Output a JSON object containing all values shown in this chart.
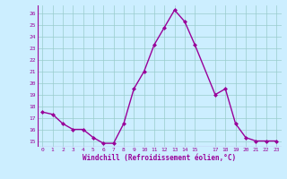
{
  "x": [
    0,
    1,
    2,
    3,
    4,
    5,
    6,
    7,
    8,
    9,
    10,
    11,
    12,
    13,
    14,
    15,
    17,
    18,
    19,
    20,
    21,
    22,
    23
  ],
  "y": [
    17.5,
    17.3,
    16.5,
    16.0,
    16.0,
    15.3,
    14.8,
    14.8,
    16.5,
    19.5,
    21.0,
    23.3,
    24.8,
    26.3,
    25.3,
    23.3,
    19.0,
    19.5,
    16.5,
    15.3,
    15.0,
    15.0,
    15.0
  ],
  "xlim": [
    -0.5,
    23.5
  ],
  "ylim": [
    14.5,
    26.7
  ],
  "yticks": [
    15,
    16,
    17,
    18,
    19,
    20,
    21,
    22,
    23,
    24,
    25,
    26
  ],
  "xticks": [
    0,
    1,
    2,
    3,
    4,
    5,
    6,
    7,
    8,
    9,
    10,
    11,
    12,
    13,
    14,
    15,
    17,
    18,
    19,
    20,
    21,
    22,
    23
  ],
  "xlabel": "Windchill (Refroidissement éolien,°C)",
  "line_color": "#990099",
  "marker": "D",
  "marker_size": 2,
  "bg_color": "#cceeff",
  "grid_color": "#99cccc",
  "tick_label_color": "#990099",
  "xlabel_color": "#990099",
  "line_width": 1.0
}
